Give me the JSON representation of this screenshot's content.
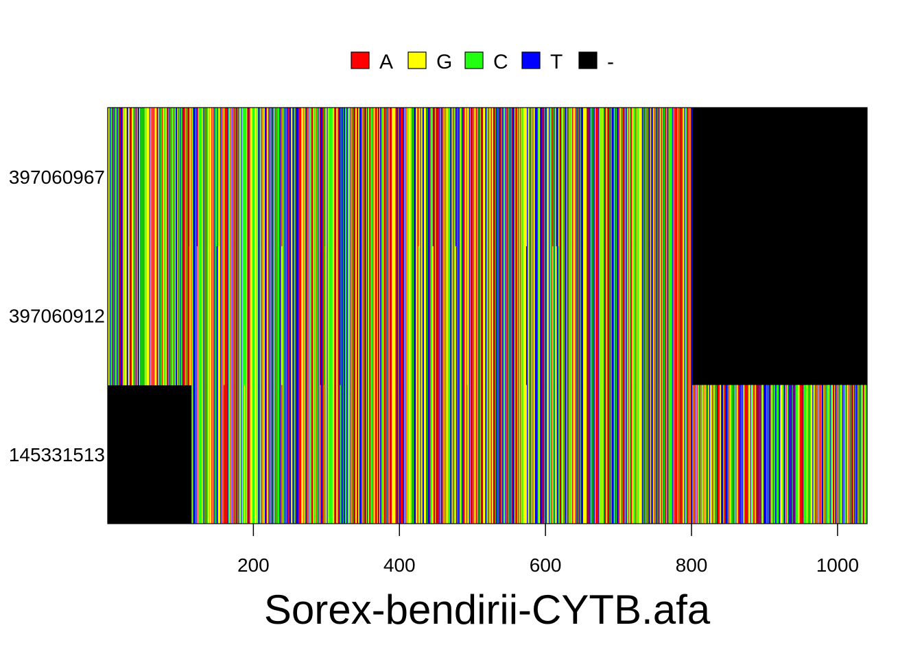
{
  "chart_data": {
    "type": "heatmap",
    "title": "Sorex-bendirii-CYTB.afa",
    "xlabel": "",
    "ylabel": "",
    "x_range": [
      1,
      1040
    ],
    "x_ticks": [
      200,
      400,
      600,
      800,
      1000
    ],
    "legend": {
      "placement": "top-center",
      "entries": [
        {
          "label": "A",
          "color": "#ff0000"
        },
        {
          "label": "G",
          "color": "#ffff00"
        },
        {
          "label": "C",
          "color": "#22ff11"
        },
        {
          "label": "T",
          "color": "#0000ff"
        },
        {
          "label": "-",
          "color": "#000000"
        }
      ]
    },
    "sequences": [
      {
        "label": "397060967",
        "aligned_start": 1,
        "aligned_end": 800
      },
      {
        "label": "397060912",
        "aligned_start": 1,
        "aligned_end": 800
      },
      {
        "label": "145331513",
        "aligned_start": 116,
        "aligned_end": 1040
      }
    ],
    "gap_color": "#000000"
  }
}
